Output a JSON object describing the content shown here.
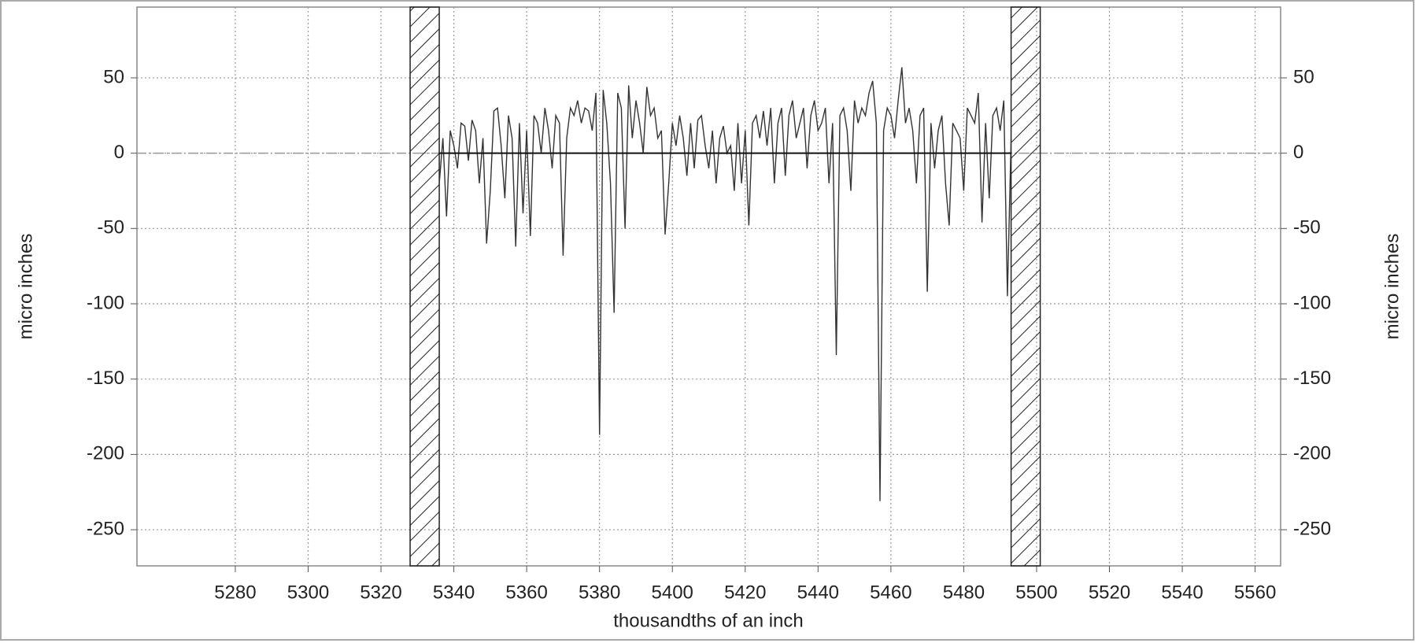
{
  "chart_data": {
    "type": "line",
    "x_label": "thousandths of an inch",
    "y_label": "micro inches",
    "y2_label": "micro inches",
    "xlim": [
      5253,
      5567
    ],
    "xticks": [
      5280,
      5300,
      5320,
      5340,
      5360,
      5380,
      5400,
      5420,
      5440,
      5460,
      5480,
      5500,
      5520,
      5540,
      5560
    ],
    "ylim": [
      -274,
      97
    ],
    "yticks": [
      50,
      0,
      -50,
      -100,
      -150,
      -200,
      -250
    ],
    "y2lim": [
      -274,
      97
    ],
    "y2ticks": [
      50,
      0,
      -50,
      -100,
      -150,
      -200,
      -250
    ],
    "grid": true,
    "reference_y": 0,
    "hatched_regions": [
      [
        5328,
        5336
      ],
      [
        5493,
        5501
      ]
    ],
    "series": [
      {
        "color": "#333333",
        "x": [
          5336,
          5337,
          5338,
          5339,
          5340,
          5341,
          5342,
          5343,
          5344,
          5345,
          5346,
          5347,
          5348,
          5349,
          5350,
          5351,
          5352,
          5353,
          5354,
          5355,
          5356,
          5357,
          5358,
          5359,
          5360,
          5361,
          5362,
          5363,
          5364,
          5365,
          5366,
          5367,
          5368,
          5369,
          5370,
          5371,
          5372,
          5373,
          5374,
          5375,
          5376,
          5377,
          5378,
          5379,
          5380,
          5381,
          5382,
          5383,
          5384,
          5385,
          5386,
          5387,
          5388,
          5389,
          5390,
          5391,
          5392,
          5393,
          5394,
          5395,
          5396,
          5397,
          5398,
          5399,
          5400,
          5401,
          5402,
          5403,
          5404,
          5405,
          5406,
          5407,
          5408,
          5409,
          5410,
          5411,
          5412,
          5413,
          5414,
          5415,
          5416,
          5417,
          5418,
          5419,
          5420,
          5421,
          5422,
          5423,
          5424,
          5425,
          5426,
          5427,
          5428,
          5429,
          5430,
          5431,
          5432,
          5433,
          5434,
          5435,
          5436,
          5437,
          5438,
          5439,
          5440,
          5441,
          5442,
          5443,
          5444,
          5445,
          5446,
          5447,
          5448,
          5449,
          5450,
          5451,
          5452,
          5453,
          5454,
          5455,
          5456,
          5457,
          5458,
          5459,
          5460,
          5461,
          5462,
          5463,
          5464,
          5465,
          5466,
          5467,
          5468,
          5469,
          5470,
          5471,
          5472,
          5473,
          5474,
          5475,
          5476,
          5477,
          5478,
          5479,
          5480,
          5481,
          5482,
          5483,
          5484,
          5485,
          5486,
          5487,
          5488,
          5489,
          5490,
          5491,
          5492,
          5493
        ],
        "values": [
          -20,
          10,
          -42,
          15,
          5,
          -10,
          20,
          18,
          -5,
          22,
          15,
          -20,
          10,
          -60,
          -25,
          28,
          30,
          5,
          -30,
          25,
          10,
          -62,
          20,
          -40,
          15,
          -55,
          25,
          20,
          0,
          30,
          15,
          -10,
          25,
          20,
          -68,
          10,
          30,
          25,
          35,
          20,
          30,
          28,
          15,
          40,
          -187,
          42,
          20,
          -20,
          -106,
          40,
          30,
          -50,
          45,
          10,
          35,
          20,
          0,
          44,
          25,
          30,
          10,
          15,
          -54,
          -20,
          20,
          5,
          25,
          10,
          -15,
          20,
          -10,
          22,
          25,
          5,
          -10,
          15,
          -20,
          10,
          18,
          0,
          5,
          -25,
          20,
          -20,
          15,
          -48,
          20,
          25,
          10,
          28,
          5,
          30,
          -20,
          20,
          30,
          -15,
          25,
          35,
          10,
          20,
          30,
          -10,
          25,
          35,
          15,
          20,
          30,
          -20,
          20,
          -134,
          25,
          30,
          15,
          -25,
          35,
          20,
          30,
          25,
          40,
          48,
          20,
          -231,
          15,
          30,
          25,
          10,
          35,
          57,
          20,
          30,
          15,
          -20,
          25,
          30,
          -92,
          20,
          -10,
          15,
          25,
          -20,
          -48,
          20,
          15,
          10,
          -25,
          30,
          25,
          20,
          40,
          -46,
          20,
          -30,
          25,
          30,
          15,
          35,
          -95,
          10
        ]
      },
      {
        "color": "#111111",
        "x": [
          5336,
          5493
        ],
        "values": [
          0,
          0
        ]
      }
    ]
  }
}
